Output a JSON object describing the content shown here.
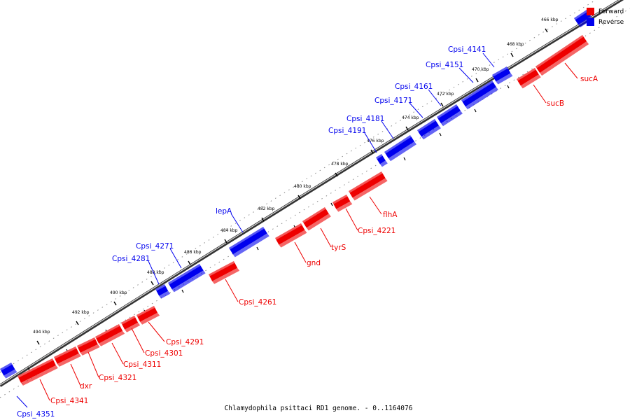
{
  "caption": "Chlamydophila psittaci RD1 genome. - 0..1164076",
  "legend": [
    {
      "label": "Forward",
      "color": "#ee0000"
    },
    {
      "label": "Reverse",
      "color": "#0000ee"
    }
  ],
  "colors": {
    "forward": "#ee0000",
    "reverse": "#0000ee",
    "backbone": "#888888"
  },
  "axis": {
    "unit": "kbp",
    "ticks": [
      "466 kbp",
      "468 kbp",
      "470 kbp",
      "472 kbp",
      "474 kbp",
      "476 kbp",
      "478 kbp",
      "480 kbp",
      "482 kbp",
      "484 kbp",
      "486 kbp",
      "488 kbp",
      "490 kbp",
      "492 kbp",
      "494 kbp"
    ]
  },
  "genes": {
    "reverse": [
      "Cpsi_4141",
      "Cpsi_4151",
      "Cpsi_4161",
      "Cpsi_4171",
      "Cpsi_4181",
      "Cpsi_4191",
      "lepA",
      "Cpsi_4271",
      "Cpsi_4281",
      "Cpsi_4351"
    ],
    "forward": [
      "sucA",
      "sucB",
      "flhA",
      "Cpsi_4221",
      "tyrS",
      "gnd",
      "Cpsi_4261",
      "Cpsi_4291",
      "Cpsi_4301",
      "Cpsi_4311",
      "Cpsi_4321",
      "dxr",
      "Cpsi_4341"
    ]
  }
}
